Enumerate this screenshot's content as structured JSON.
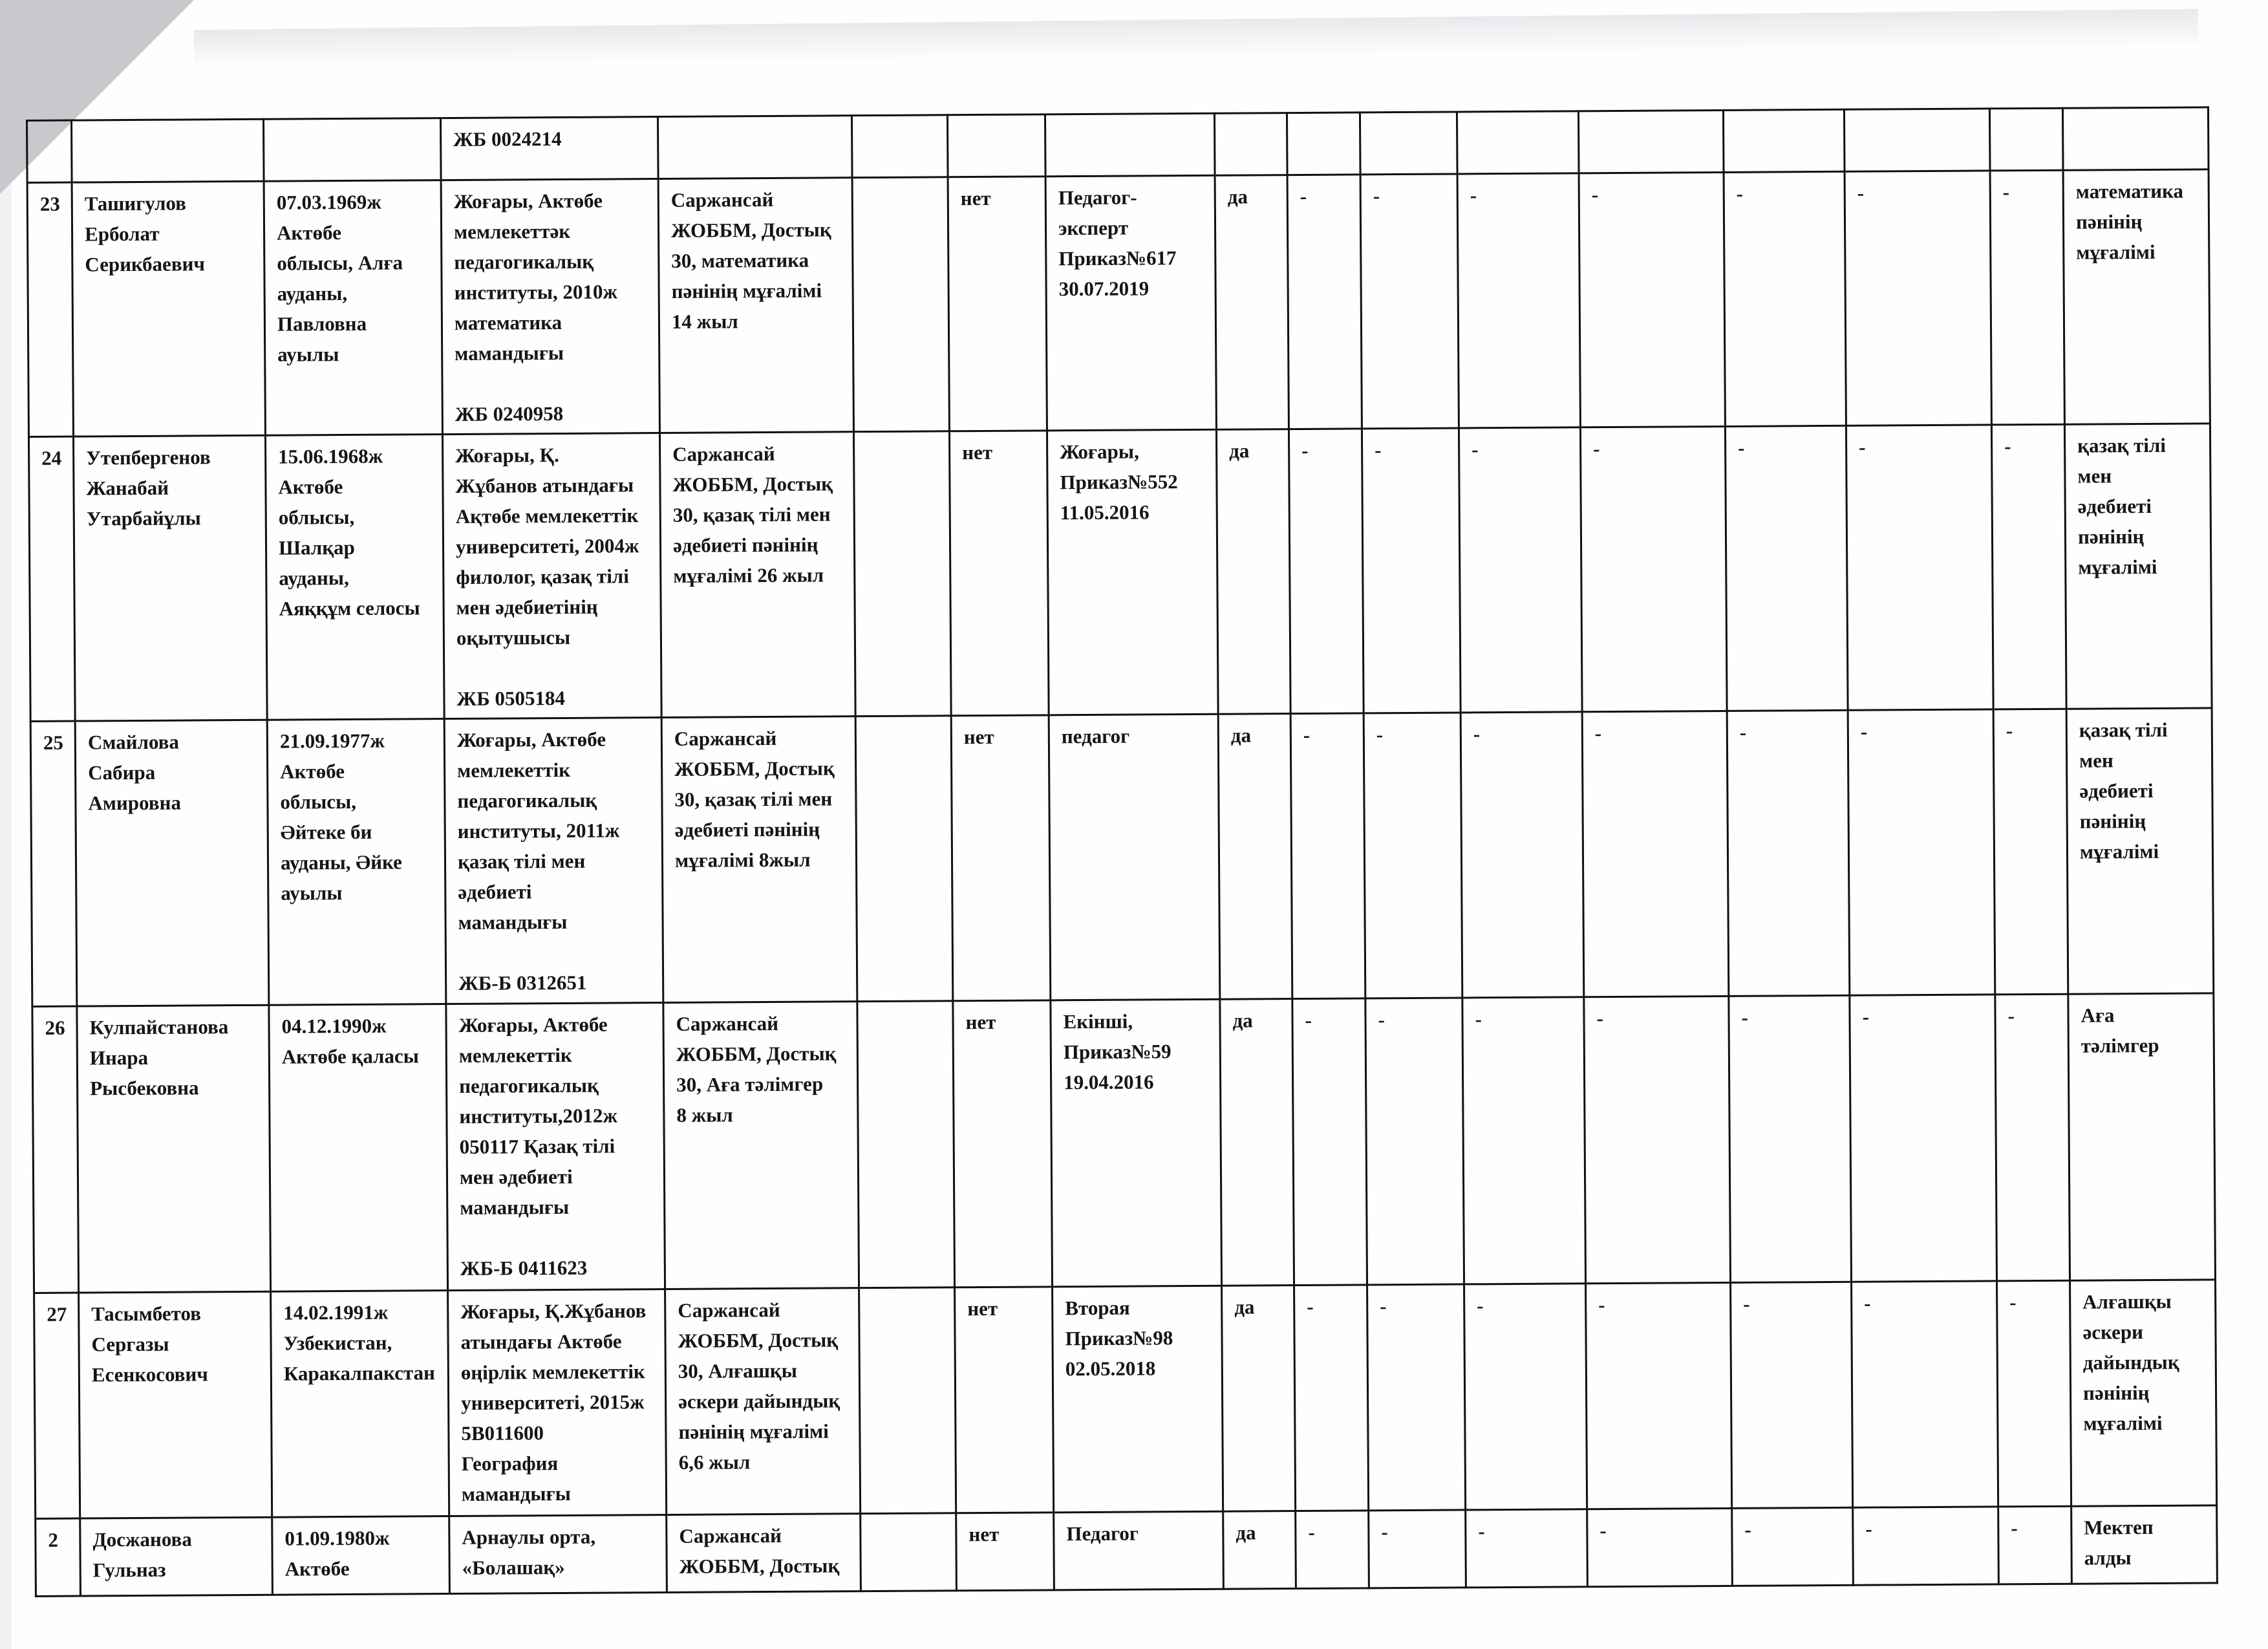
{
  "partial_row": {
    "education": "ЖБ 0024214"
  },
  "rows": [
    {
      "num": "23",
      "name": "Ташигулов\nЕрболат\nСерикбаевич",
      "birth": "07.03.1969ж\nАктөбе\nоблысы, Алға\nауданы,\nПавловна\nауылы",
      "education": "Жоғары, Актөбе\nмемлекеттәк\nпедагогикалық\nинституты, 2010ж\nматематика\nмамандығы\n\nЖБ 0240958",
      "workplace": "Саржансай\nЖОББМ, Достық\n30, математика\nпәнінің мұғалімі\n14 жыл",
      "extra": "",
      "flag_no": "нет",
      "category": "Педагог-\nэксперт\nПриказ№617\n30.07.2019",
      "flag_yes": "да",
      "dashes": [
        "-",
        "-",
        "-",
        "-",
        "-",
        "-",
        "-"
      ],
      "position": "математика\nпәнінің\nмұғалімі"
    },
    {
      "num": "24",
      "name": "Утепбергенов\nЖанабай\nУтарбайұлы",
      "birth": "15.06.1968ж\nАктөбе\nоблысы,\nШалқар\nауданы,\nАяққұм селосы",
      "education": "Жоғары, Қ.\nЖұбанов атындағы\nАқтөбе мемлекеттік\nуниверситеті, 2004ж\nфилолог, қазақ тілі\nмен әдебиетінің\nоқытушысы\n\nЖБ 0505184",
      "workplace": "Саржансай\nЖОББМ, Достық\n30, қазақ тілі мен\nәдебиеті пәнінің\nмұғалімі 26 жыл",
      "extra": "",
      "flag_no": "нет",
      "category": "Жоғары,\nПриказ№552\n11.05.2016",
      "flag_yes": "да",
      "dashes": [
        "-",
        "-",
        "-",
        "-",
        "-",
        "-",
        "-"
      ],
      "position": "қазақ тілі\nмен\nәдебиеті\nпәнінің\nмұғалімі"
    },
    {
      "num": "25",
      "name": "Смайлова\nСабира\nАмировна",
      "birth": "21.09.1977ж\nАктөбе\nоблысы,\nӘйтеке би\nауданы, Әйке\nауылы",
      "education": "Жоғары, Актөбе\nмемлекеттік\nпедагогикалық\nинституты, 2011ж\nқазақ тілі мен\nәдебиеті\nмамандығы\n\nЖБ-Б 0312651",
      "workplace": "Саржансай\nЖОББМ, Достық\n30, қазақ тілі мен\nәдебиеті пәнінің\nмұғалімі 8жыл",
      "extra": "",
      "flag_no": "нет",
      "category": "педагог",
      "flag_yes": "да",
      "dashes": [
        "-",
        "-",
        "-",
        "-",
        "-",
        "-",
        "-"
      ],
      "position": "қазақ тілі\nмен\nәдебиеті\nпәнінің\nмұғалімі"
    },
    {
      "num": "26",
      "name": "Кулпайстанова\nИнара\nРысбековна",
      "birth": "04.12.1990ж\nАктөбе қаласы",
      "education": "Жоғары, Актөбе\nмемлекеттік\nпедагогикалық\nинституты,2012ж\n050117 Қазақ тілі\nмен әдебиеті\nмамандығы\n\nЖБ-Б 0411623",
      "workplace": "Саржансай\nЖОББМ, Достық\n30, Аға тәлімгер\n8 жыл",
      "extra": "",
      "flag_no": "нет",
      "category": "Екінші,\nПриказ№59\n19.04.2016",
      "flag_yes": "да",
      "dashes": [
        "-",
        "-",
        "-",
        "-",
        "-",
        "-",
        "-"
      ],
      "position": "Аға\nтәлімгер"
    },
    {
      "num": "27",
      "name": "Тасымбетов\nСергазы\nЕсенкосович",
      "birth": "14.02.1991ж\nУзбекистан,\nКаракалпакстан",
      "education": "Жоғары, Қ.Жұбанов\nатындағы Актөбе\nөңірлік мемлекеттік\nуниверситеті, 2015ж\n5В011600\nГеография\nмамандығы",
      "workplace": "Саржансай\nЖОББМ, Достық\n30, Алғашқы\nәскери дайындық\nпәнінің мұғалімі\n6,6 жыл",
      "extra": "",
      "flag_no": "нет",
      "category": "Вторая\nПриказ№98\n02.05.2018",
      "flag_yes": "да",
      "dashes": [
        "-",
        "-",
        "-",
        "-",
        "-",
        "-",
        "-"
      ],
      "position": "Алғашқы\nәскери\nдайындық\nпәнінің\nмұғалімі"
    },
    {
      "num": "2",
      "name": "Досжанова\nГульназ",
      "birth": "01.09.1980ж\nАктөбе",
      "education": "Арнаулы орта,\n«Болашақ»",
      "workplace": "Саржансай\nЖОББМ, Достық",
      "extra": "",
      "flag_no": "нет",
      "category": "Педагог",
      "flag_yes": "да",
      "dashes": [
        "-",
        "-",
        "-",
        "-",
        "-",
        "-",
        "-"
      ],
      "position": "Мектеп\nалды"
    }
  ]
}
